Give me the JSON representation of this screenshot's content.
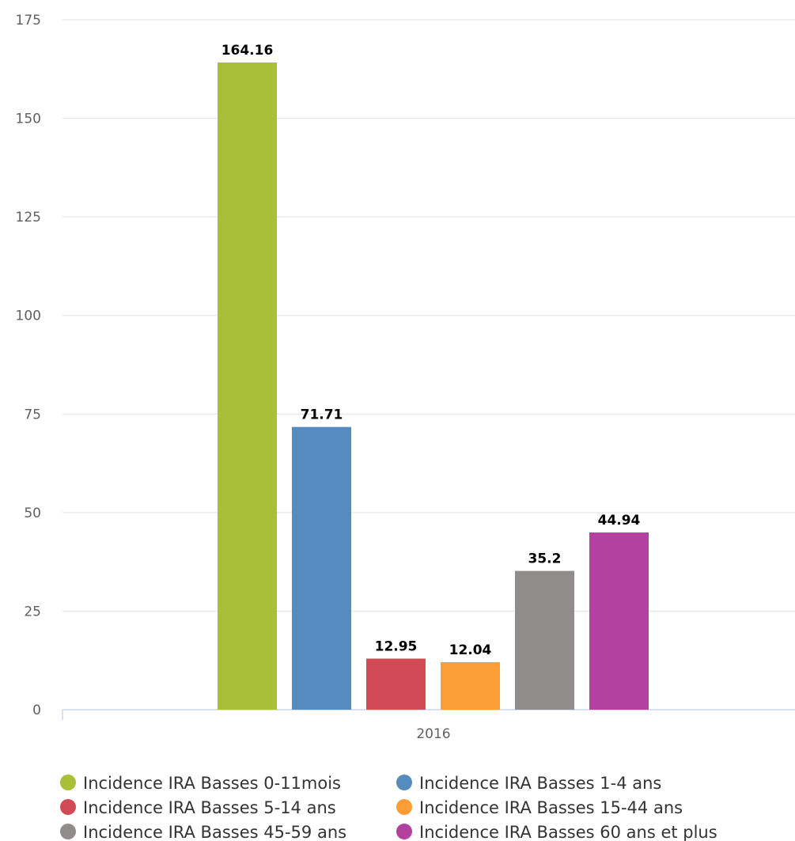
{
  "chart_data": {
    "type": "bar",
    "categories": [
      "2016"
    ],
    "ylim": [
      0,
      175
    ],
    "yticks": [
      0,
      25,
      50,
      75,
      100,
      125,
      150,
      175
    ],
    "grid": true,
    "legend_position": "bottom",
    "series": [
      {
        "name": "Incidence IRA Basses 0-11mois",
        "values": [
          164.16
        ],
        "value_label": "164.16",
        "color": "#a9bf38"
      },
      {
        "name": "Incidence IRA Basses 1-4 ans",
        "values": [
          71.71
        ],
        "value_label": "71.71",
        "color": "#558bbf"
      },
      {
        "name": "Incidence IRA Basses 5-14 ans",
        "values": [
          12.95
        ],
        "value_label": "12.95",
        "color": "#d14a55"
      },
      {
        "name": "Incidence IRA Basses 15-44 ans",
        "values": [
          12.04
        ],
        "value_label": "12.04",
        "color": "#fd9d37"
      },
      {
        "name": "Incidence IRA Basses 45-59 ans",
        "values": [
          35.2
        ],
        "value_label": "35.2",
        "color": "#918c8c"
      },
      {
        "name": "Incidence IRA Basses 60 ans et plus",
        "values": [
          44.94
        ],
        "value_label": "44.94",
        "color": "#b3419e"
      }
    ]
  }
}
